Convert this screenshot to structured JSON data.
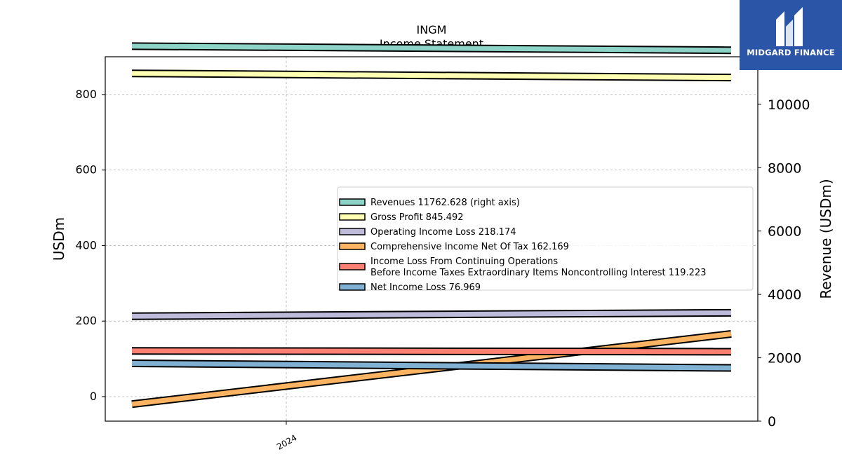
{
  "brand": {
    "name": "MIDGARD FINANCE",
    "icon": "midgard-logo-icon",
    "color": "#2b56a8"
  },
  "chart_data": {
    "type": "line",
    "title": "INGM",
    "subtitle": "Income Statement",
    "x_tick_labels": [
      "2024"
    ],
    "left_axis": {
      "label": "USDm",
      "ylim": [
        -65,
        900
      ],
      "ticks": [
        0,
        200,
        400,
        600,
        800
      ]
    },
    "right_axis": {
      "label": "Revenue (USDm)",
      "ylim": [
        0,
        11500
      ],
      "ticks": [
        0,
        2000,
        4000,
        6000,
        8000,
        10000
      ]
    },
    "grid": true,
    "legend_position": "center-right",
    "series": [
      {
        "name": "Revenues",
        "value_label": "11762.628 (right axis)",
        "axis": "right",
        "color": "#8dd3c7",
        "values": [
          11835,
          11705
        ]
      },
      {
        "name": "Gross Profit",
        "value_label": "845.492",
        "axis": "left",
        "color": "#ffffb3",
        "values": [
          856,
          845
        ]
      },
      {
        "name": "Operating Income Loss",
        "value_label": "218.174",
        "axis": "left",
        "color": "#bebada",
        "values": [
          213,
          222
        ]
      },
      {
        "name": "Comprehensive Income Net Of Tax",
        "value_label": "162.169",
        "axis": "left",
        "color": "#fdb462",
        "values": [
          -20,
          166
        ]
      },
      {
        "name": "Income Loss From Continuing Operations Before Income Taxes Extraordinary Items Noncontrolling Interest",
        "legend_lines": [
          "Income Loss From Continuing Operations",
          "Before Income Taxes Extraordinary Items Noncontrolling Interest"
        ],
        "value_label": "119.223",
        "axis": "left",
        "color": "#fb8072",
        "values": [
          121,
          119
        ]
      },
      {
        "name": "Net Income Loss",
        "value_label": "76.969",
        "axis": "left",
        "color": "#80b1d3",
        "values": [
          88,
          76
        ]
      }
    ]
  }
}
